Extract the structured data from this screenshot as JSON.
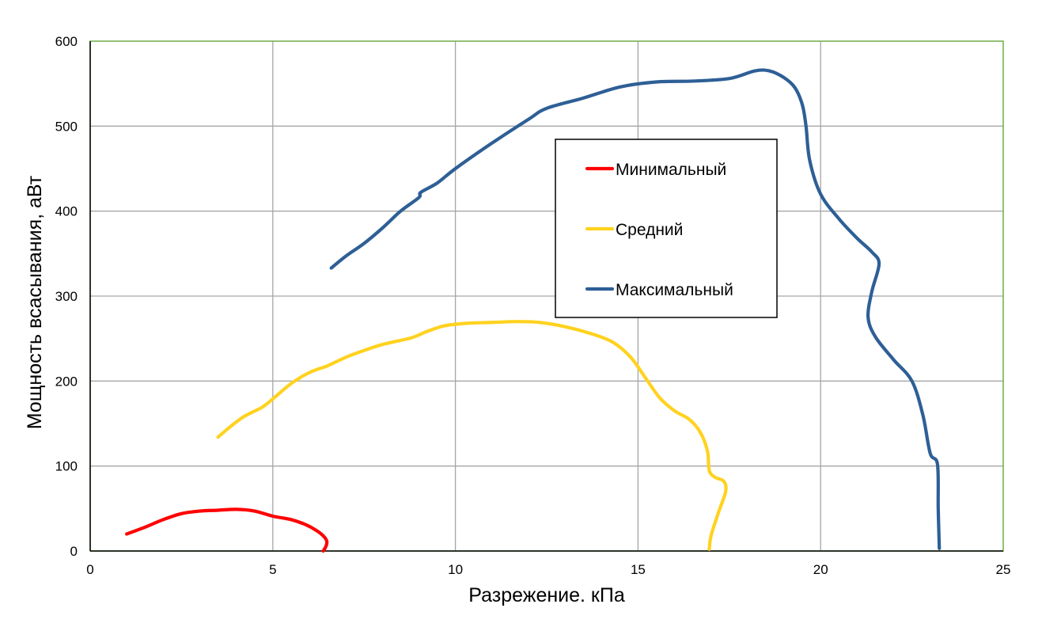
{
  "chart_data": {
    "type": "line",
    "title": "",
    "xlabel": "Разрежение. кПа",
    "ylabel": "Мощность всасывания, аВт",
    "xlim": [
      0,
      25
    ],
    "ylim": [
      0,
      600
    ],
    "xticks": [
      0,
      5,
      10,
      15,
      20,
      25
    ],
    "yticks": [
      0,
      100,
      200,
      300,
      400,
      500,
      600
    ],
    "grid": true,
    "legend_position": "center-right",
    "plot_border_color": "#70ad47",
    "series": [
      {
        "name": "Минимальный",
        "color": "#ff0000",
        "points": [
          [
            1.0,
            20
          ],
          [
            1.5,
            28
          ],
          [
            2.0,
            37
          ],
          [
            2.5,
            44
          ],
          [
            3.0,
            47
          ],
          [
            3.5,
            48
          ],
          [
            4.0,
            49
          ],
          [
            4.5,
            47
          ],
          [
            5.0,
            41
          ],
          [
            5.5,
            37
          ],
          [
            5.9,
            31
          ],
          [
            6.2,
            24
          ],
          [
            6.4,
            17
          ],
          [
            6.48,
            11
          ],
          [
            6.45,
            5
          ],
          [
            6.38,
            0
          ]
        ]
      },
      {
        "name": "Средний",
        "color": "#ffd21f",
        "points": [
          [
            3.5,
            134
          ],
          [
            3.8,
            145
          ],
          [
            4.2,
            158
          ],
          [
            4.7,
            169
          ],
          [
            5.0,
            179
          ],
          [
            5.5,
            197
          ],
          [
            6.0,
            210
          ],
          [
            6.5,
            218
          ],
          [
            7.0,
            228
          ],
          [
            7.5,
            236
          ],
          [
            8.0,
            243
          ],
          [
            8.8,
            251
          ],
          [
            9.2,
            258
          ],
          [
            9.7,
            265
          ],
          [
            10.3,
            268
          ],
          [
            11.0,
            269
          ],
          [
            11.7,
            270
          ],
          [
            12.3,
            269
          ],
          [
            13.0,
            264
          ],
          [
            13.7,
            256
          ],
          [
            14.3,
            246
          ],
          [
            14.8,
            228
          ],
          [
            15.2,
            204
          ],
          [
            15.6,
            180
          ],
          [
            16.0,
            165
          ],
          [
            16.4,
            155
          ],
          [
            16.7,
            140
          ],
          [
            16.9,
            118
          ],
          [
            16.95,
            95
          ],
          [
            17.1,
            87
          ],
          [
            17.35,
            82
          ],
          [
            17.4,
            70
          ],
          [
            17.2,
            45
          ],
          [
            17.0,
            18
          ],
          [
            16.95,
            2
          ]
        ]
      },
      {
        "name": "Максимальный",
        "color": "#2e5f96",
        "points": [
          [
            6.6,
            333
          ],
          [
            7.0,
            347
          ],
          [
            7.5,
            362
          ],
          [
            8.0,
            380
          ],
          [
            8.5,
            400
          ],
          [
            9.0,
            416
          ],
          [
            9.05,
            422
          ],
          [
            9.5,
            433
          ],
          [
            10.0,
            450
          ],
          [
            11.0,
            480
          ],
          [
            12.0,
            508
          ],
          [
            12.5,
            521
          ],
          [
            13.5,
            533
          ],
          [
            14.5,
            546
          ],
          [
            15.5,
            552
          ],
          [
            16.5,
            553
          ],
          [
            17.5,
            556
          ],
          [
            18.2,
            565
          ],
          [
            18.6,
            565
          ],
          [
            19.0,
            557
          ],
          [
            19.3,
            545
          ],
          [
            19.5,
            525
          ],
          [
            19.6,
            500
          ],
          [
            19.7,
            460
          ],
          [
            20.0,
            420
          ],
          [
            20.5,
            391
          ],
          [
            21.0,
            368
          ],
          [
            21.4,
            352
          ],
          [
            21.6,
            338
          ],
          [
            21.4,
            305
          ],
          [
            21.3,
            275
          ],
          [
            21.5,
            252
          ],
          [
            22.0,
            225
          ],
          [
            22.5,
            200
          ],
          [
            22.8,
            160
          ],
          [
            23.0,
            115
          ],
          [
            23.2,
            102
          ],
          [
            23.22,
            50
          ],
          [
            23.25,
            3
          ]
        ]
      }
    ]
  }
}
